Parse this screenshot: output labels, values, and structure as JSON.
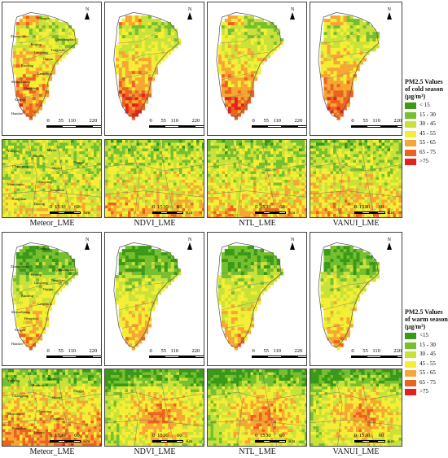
{
  "legend_cold": {
    "title_line1": "PM2.5 Values",
    "title_line2": "of cold season",
    "units": "(μg/m³)",
    "classes": [
      {
        "label": "< 15",
        "color": "#3a9a18"
      },
      {
        "label": "15 - 30",
        "color": "#76bf2e"
      },
      {
        "label": "30 - 45",
        "color": "#c9e23a"
      },
      {
        "label": "45 - 55",
        "color": "#f5ee35"
      },
      {
        "label": "55 - 65",
        "color": "#f6a632"
      },
      {
        "label": "65 - 75",
        "color": "#ee6220"
      },
      {
        "label": ">75",
        "color": "#e6211b"
      }
    ]
  },
  "legend_warm": {
    "title_line1": "PM2.5 Values",
    "title_line2": "of warm season",
    "units": "(μg/m³)",
    "classes": [
      {
        "label": "<15",
        "color": "#3a9a18"
      },
      {
        "label": "15 - 30",
        "color": "#76bf2e"
      },
      {
        "label": "30 - 45",
        "color": "#c9e23a"
      },
      {
        "label": "45 - 55",
        "color": "#f5ee35"
      },
      {
        "label": "55 - 65",
        "color": "#f6a632"
      },
      {
        "label": "65 - 75",
        "color": "#ee6220"
      },
      {
        "label": ">75",
        "color": "#e6211b"
      }
    ]
  },
  "captions": {
    "cold": [
      "Meteor_LME",
      "NDVI_LME",
      "NTL_LME",
      "VANUI_LME"
    ],
    "warm": [
      "Meteor_LME",
      "NDVI_LME",
      "NTL_LME",
      "VANUI_LME"
    ]
  },
  "scalebar_large": {
    "ticks": [
      "0",
      "55",
      "110",
      "220"
    ],
    "unit": "Km"
  },
  "scalebar_small": {
    "ticks": [
      "0",
      "15",
      "30",
      "60"
    ],
    "unit": "Km"
  },
  "north_label": "N",
  "city_labels": [
    "Chengde",
    "Zhangjiakou",
    "Qinhuangdao",
    "Beijing",
    "Tangshan",
    "Langfang",
    "Tianjin",
    "Baoding",
    "Cangzhou",
    "Shijiazhuang",
    "Hengshui",
    "Xingtai",
    "Handan"
  ],
  "zoom_labels": [
    "Miyun",
    "Huairou",
    "Yanqing",
    "Changping",
    "Shunyi",
    "Pinggu",
    "Mentougou",
    "Chaoyang",
    "Tongzhou",
    "Fangshan",
    "Daxing"
  ],
  "maps": {
    "cold_overview": [
      "mostly-green-yellow-north",
      "orange-red-south",
      "orange-red-south",
      "orange-red-south"
    ],
    "warm_overview": [
      "green-north-orange-south",
      "green-north-orange-south",
      "green-north-orange-south",
      "green-north-orange-south"
    ]
  }
}
